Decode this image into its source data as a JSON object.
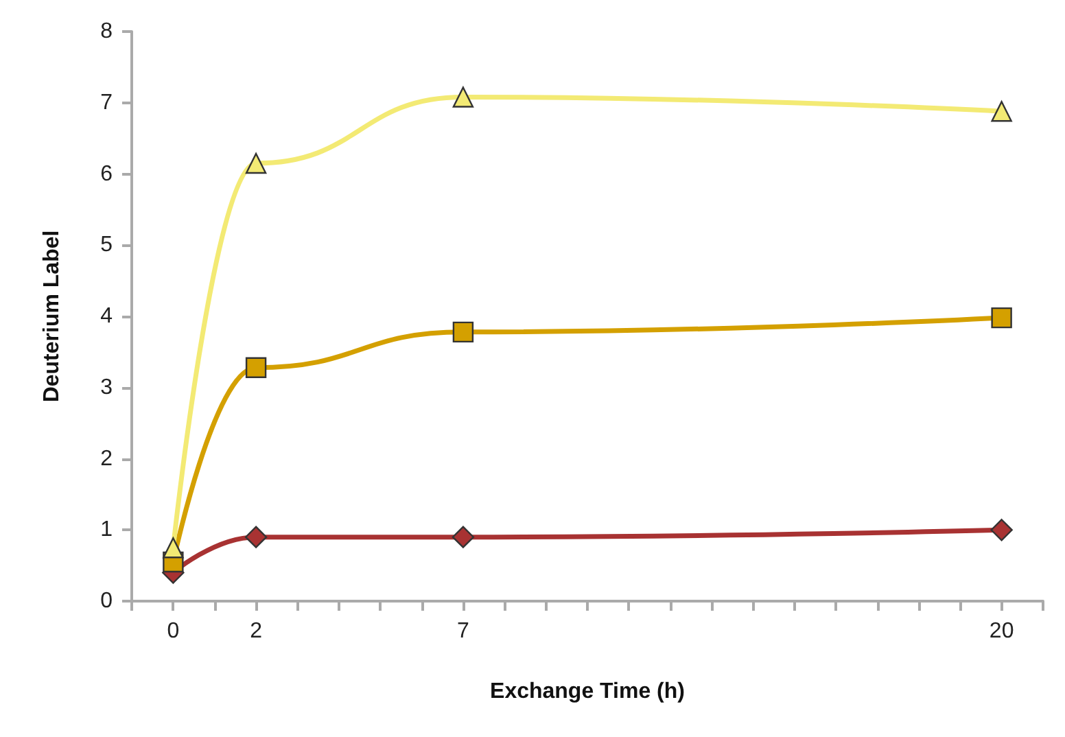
{
  "chart_data": {
    "type": "line",
    "xlabel": "Exchange Time (h)",
    "ylabel": "Deuterium Label",
    "x": [
      0,
      2,
      7,
      20
    ],
    "xlim": [
      -1,
      21
    ],
    "xticks": [
      {
        "value": -1,
        "label": null
      },
      0,
      {
        "value": 1,
        "label": null
      },
      2,
      {
        "value": 3,
        "label": null
      },
      {
        "value": 4,
        "label": null
      },
      {
        "value": 5,
        "label": null
      },
      {
        "value": 6,
        "label": null
      },
      7,
      {
        "value": 8,
        "label": null
      },
      {
        "value": 9,
        "label": null
      },
      {
        "value": 10,
        "label": null
      },
      {
        "value": 11,
        "label": null
      },
      {
        "value": 12,
        "label": null
      },
      {
        "value": 13,
        "label": null
      },
      {
        "value": 14,
        "label": null
      },
      {
        "value": 15,
        "label": null
      },
      {
        "value": 16,
        "label": null
      },
      {
        "value": 17,
        "label": null
      },
      {
        "value": 18,
        "label": null
      },
      {
        "value": 19,
        "label": null
      },
      20,
      {
        "value": 21,
        "label": null
      }
    ],
    "ylim": [
      0,
      8
    ],
    "yticks": [
      0,
      1,
      2,
      3,
      4,
      5,
      6,
      7,
      8
    ],
    "grid": false,
    "series": [
      {
        "color": "#f3ea74",
        "marker": "triangle",
        "values": [
          0.75,
          6.15,
          7.08,
          6.88
        ]
      },
      {
        "color": "#d4a000",
        "marker": "square",
        "values": [
          0.55,
          3.28,
          3.78,
          3.98
        ]
      },
      {
        "color": "#a83232",
        "marker": "diamond",
        "values": [
          0.4,
          0.9,
          0.9,
          1.0
        ]
      }
    ]
  }
}
